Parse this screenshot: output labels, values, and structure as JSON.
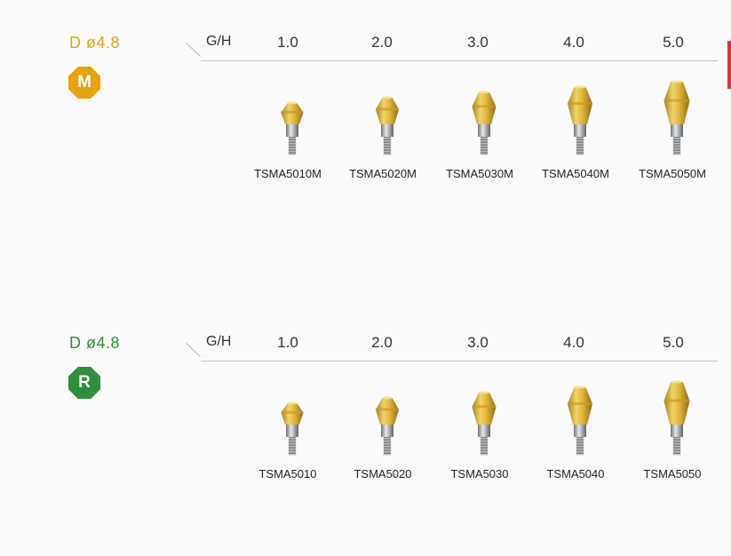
{
  "colors": {
    "m_accent": "#e8a20e",
    "r_accent": "#2f8f3a",
    "gold": "#d9b23a",
    "steel": "#9ea3a6",
    "edge_mark": "#d23a3a"
  },
  "sections": [
    {
      "diameter": "D ø4.8",
      "badge": "M",
      "gh_label": "G/H",
      "headers": [
        "1.0",
        "2.0",
        "3.0",
        "4.0",
        "5.0"
      ],
      "codes": [
        "TSMA5010M",
        "TSMA5020M",
        "TSMA5030M",
        "TSMA5040M",
        "TSMA5050M"
      ]
    },
    {
      "diameter": "D ø4.8",
      "badge": "R",
      "gh_label": "G/H",
      "headers": [
        "1.0",
        "2.0",
        "3.0",
        "4.0",
        "5.0"
      ],
      "codes": [
        "TSMA5010",
        "TSMA5020",
        "TSMA5030",
        "TSMA5040",
        "TSMA5050"
      ]
    }
  ]
}
